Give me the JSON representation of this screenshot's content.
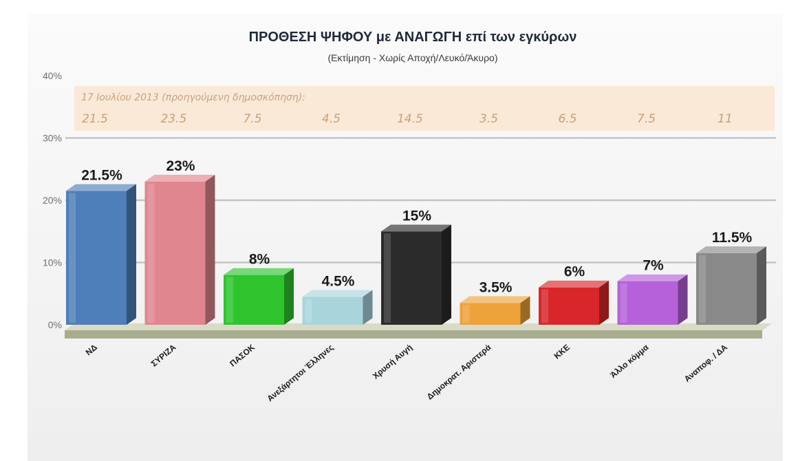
{
  "chart_data": {
    "type": "bar",
    "title": "ΠΡΟΘΕΣΗ ΨΗΦΟΥ με ΑΝΑΓΩΓΗ επί των εγκύρων",
    "subtitle": "(Εκτίμηση  -  Χωρίς Αποχή/Λευκό/Άκυρο)",
    "yticks": [
      "0%",
      "10%",
      "20%",
      "30%",
      "40%"
    ],
    "ylim": [
      0,
      40
    ],
    "grid": true,
    "categories": [
      "ΝΔ",
      "ΣΥΡΙΖΑ",
      "ΠΑΣΟΚ",
      "Ανεξάρτητοι Έλληνες",
      "Χρυσή Αυγή",
      "Δημοκρατ. Αριστερά",
      "ΚΚΕ",
      "Άλλο κόμμα",
      "Αναποφ. / ΔΑ"
    ],
    "values": [
      21.5,
      23,
      8,
      4.5,
      15,
      3.5,
      6,
      7,
      11.5
    ],
    "data_labels": [
      "21.5%",
      "23%",
      "8%",
      "4.5%",
      "15%",
      "3.5%",
      "6%",
      "7%",
      "11.5%"
    ],
    "colors": [
      "#4f7fb8",
      "#e0868f",
      "#2ec52e",
      "#a9d4dc",
      "#2b2b2b",
      "#eea23a",
      "#d9262a",
      "#b561d9",
      "#8a8a8a"
    ],
    "previous": {
      "note": "17 Ιουλίου 2013  (προηγούμενη δημοσκόπηση):",
      "values": [
        "21.5",
        "23.5",
        "7.5",
        "4.5",
        "14.5",
        "3.5",
        "6.5",
        "7.5",
        "11"
      ]
    }
  }
}
